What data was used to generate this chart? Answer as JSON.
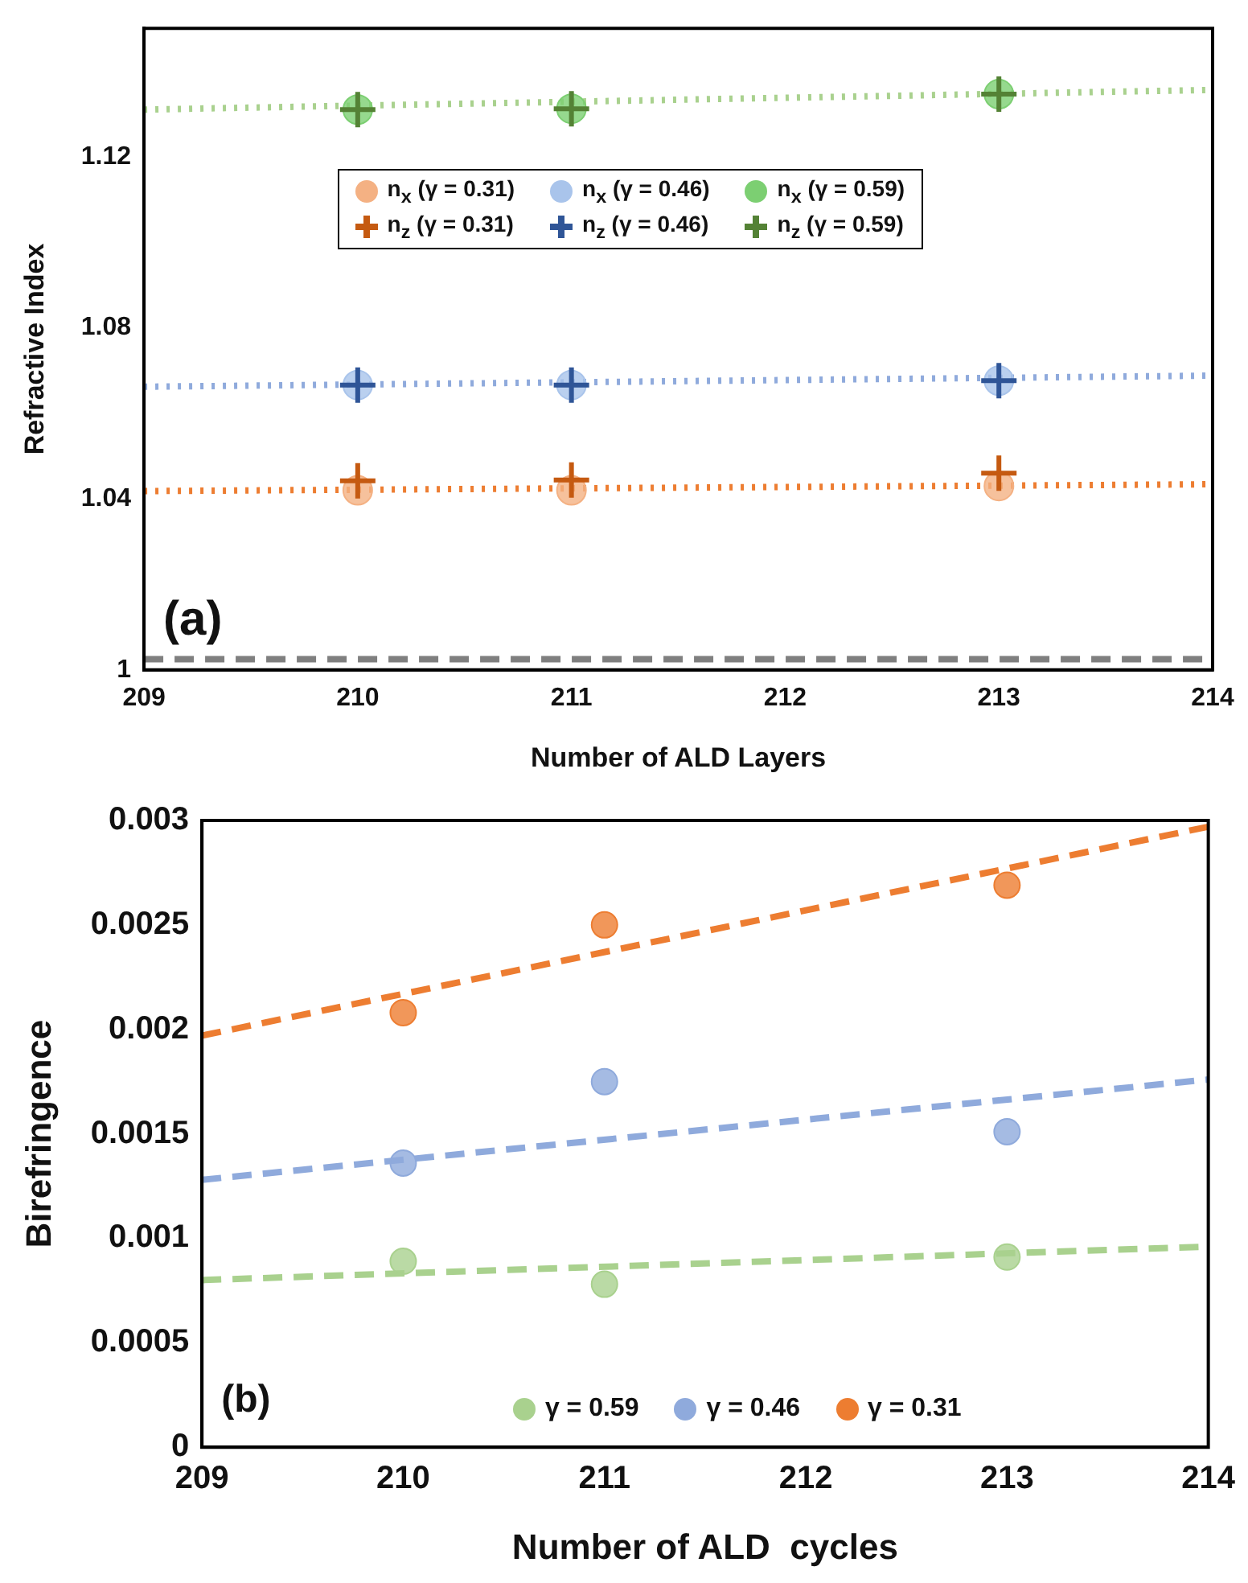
{
  "chart_data": [
    {
      "type": "scatter",
      "xlabel": "Number of ALD Layers",
      "ylabel": "Refractive Index",
      "xlim": [
        209,
        214
      ],
      "xticks": [
        209,
        210,
        211,
        212,
        213,
        214
      ],
      "ylim": [
        1,
        1.15
      ],
      "yticks": [
        1,
        1.04,
        1.08,
        1.12
      ],
      "legend": "top",
      "annotations": [
        "(a)"
      ],
      "ref_lines": [
        {
          "axis": "y",
          "value": 1.0025,
          "color": "#7f7f7f",
          "line_style": "dashed"
        }
      ],
      "series": [
        {
          "name": "n$_{x}$ (γ = 0.31)",
          "color": "#f4b183",
          "marker": "circle",
          "x": [
            210,
            211,
            213
          ],
          "values": [
            1.042,
            1.042,
            1.043
          ]
        },
        {
          "name": "n$_{z}$ (γ = 0.31)",
          "color": "#c55a11",
          "marker": "cross",
          "x": [
            210,
            211,
            213
          ],
          "values": [
            1.0442,
            1.0444,
            1.046
          ]
        },
        {
          "name": "n$_{x}$ (γ = 0.46)",
          "color": "#a9c4eb",
          "marker": "circle",
          "x": [
            210,
            211,
            213
          ],
          "values": [
            1.0666,
            1.0666,
            1.0676
          ]
        },
        {
          "name": "n$_{z}$ (γ = 0.46)",
          "color": "#2f5597",
          "marker": "cross",
          "x": [
            210,
            211,
            213
          ],
          "values": [
            1.0666,
            1.0666,
            1.0676
          ]
        },
        {
          "name": "n$_{x}$ (γ = 0.59)",
          "color": "#7ccf72",
          "marker": "circle",
          "x": [
            210,
            211,
            213
          ],
          "values": [
            1.131,
            1.1312,
            1.1346
          ]
        },
        {
          "name": "n$_{z}$ (γ = 0.59)",
          "color": "#548235",
          "marker": "cross",
          "x": [
            210,
            211,
            213
          ],
          "values": [
            1.131,
            1.1312,
            1.1346
          ]
        },
        {
          "type": "line",
          "color": "#ed7d31",
          "line_style": "dotted",
          "marker": "none",
          "x": [
            209,
            214
          ],
          "values": [
            1.0418,
            1.0434
          ]
        },
        {
          "type": "line",
          "color": "#8faadc",
          "line_style": "dotted",
          "marker": "none",
          "x": [
            209,
            214
          ],
          "values": [
            1.0662,
            1.0688
          ]
        },
        {
          "type": "line",
          "color": "#a9d18e",
          "line_style": "dotted",
          "marker": "none",
          "x": [
            209,
            214
          ],
          "values": [
            1.131,
            1.1356
          ]
        }
      ]
    },
    {
      "type": "scatter",
      "xlabel": "Number of ALD  cycles",
      "ylabel": "Birefringence",
      "xlim": [
        209,
        214
      ],
      "xticks": [
        209,
        210,
        211,
        212,
        213,
        214
      ],
      "ylim": [
        0,
        0.003
      ],
      "yticks": [
        0,
        0.0005,
        0.001,
        0.0015,
        0.002,
        0.0025,
        0.003
      ],
      "legend": "bottom",
      "annotations": [
        "(b)"
      ],
      "series": [
        {
          "name": "γ = 0.59",
          "color": "#a9d18e",
          "marker": "circle",
          "x": [
            210,
            211,
            213
          ],
          "values": [
            0.00089,
            0.00078,
            0.00091
          ]
        },
        {
          "name": "γ = 0.46",
          "color": "#8faadc",
          "marker": "circle",
          "x": [
            210,
            211,
            213
          ],
          "values": [
            0.00136,
            0.00175,
            0.00151
          ]
        },
        {
          "name": "γ = 0.31",
          "color": "#ed7d31",
          "marker": "circle",
          "x": [
            210,
            211,
            213
          ],
          "values": [
            0.00208,
            0.0025,
            0.00269
          ]
        },
        {
          "type": "line",
          "color": "#a9d18e",
          "line_style": "dashed",
          "marker": "none",
          "x": [
            209,
            214
          ],
          "values": [
            0.0008,
            0.00096
          ]
        },
        {
          "type": "line",
          "color": "#8faadc",
          "line_style": "dashed",
          "marker": "none",
          "x": [
            209,
            214
          ],
          "values": [
            0.00128,
            0.00176
          ]
        },
        {
          "type": "line",
          "color": "#ed7d31",
          "line_style": "dashed",
          "marker": "none",
          "x": [
            209,
            214
          ],
          "values": [
            0.00197,
            0.00297
          ]
        }
      ]
    }
  ]
}
